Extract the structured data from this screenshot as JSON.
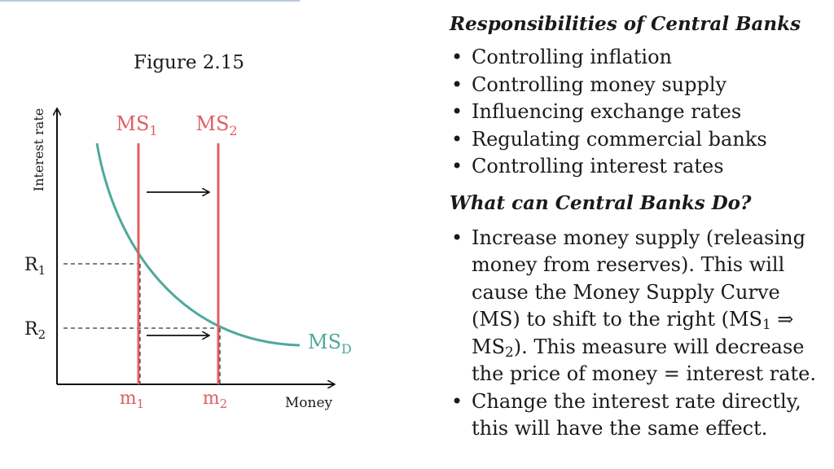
{
  "figure": {
    "title": "Figure 2.15",
    "y_axis_label": "Interest rate",
    "x_axis_label": "Money",
    "supply_curves": [
      {
        "base": "MS",
        "sub": "1"
      },
      {
        "base": "MS",
        "sub": "2"
      }
    ],
    "demand_curve": {
      "base": "MS",
      "sub": "D"
    },
    "rate_levels": [
      {
        "base": "R",
        "sub": "1"
      },
      {
        "base": "R",
        "sub": "2"
      }
    ],
    "money_levels": [
      {
        "base": "m",
        "sub": "1"
      },
      {
        "base": "m",
        "sub": "2"
      }
    ],
    "colors": {
      "supply": "#e05f5f",
      "demand": "#4fa89b",
      "axis": "#111111"
    }
  },
  "responsibilities": {
    "heading": "Responsibilities of Central Banks",
    "items": [
      "Controlling inflation",
      "Controlling money supply",
      "Influencing exchange rates",
      "Regulating commercial banks",
      "Controlling interest rates"
    ]
  },
  "actions": {
    "heading": "What can Central Banks Do?",
    "item1": {
      "text_a": "Increase money supply (releasing money from reserves). This will cause the Money Supply Curve (MS) to shift to the right (MS",
      "sub1": "1",
      "arrow": " ⇒ MS",
      "sub2": "2",
      "text_b": "). This measure will decrease the price of money = interest rate."
    },
    "item2": "Change the interest rate directly, this will have the same effect."
  }
}
